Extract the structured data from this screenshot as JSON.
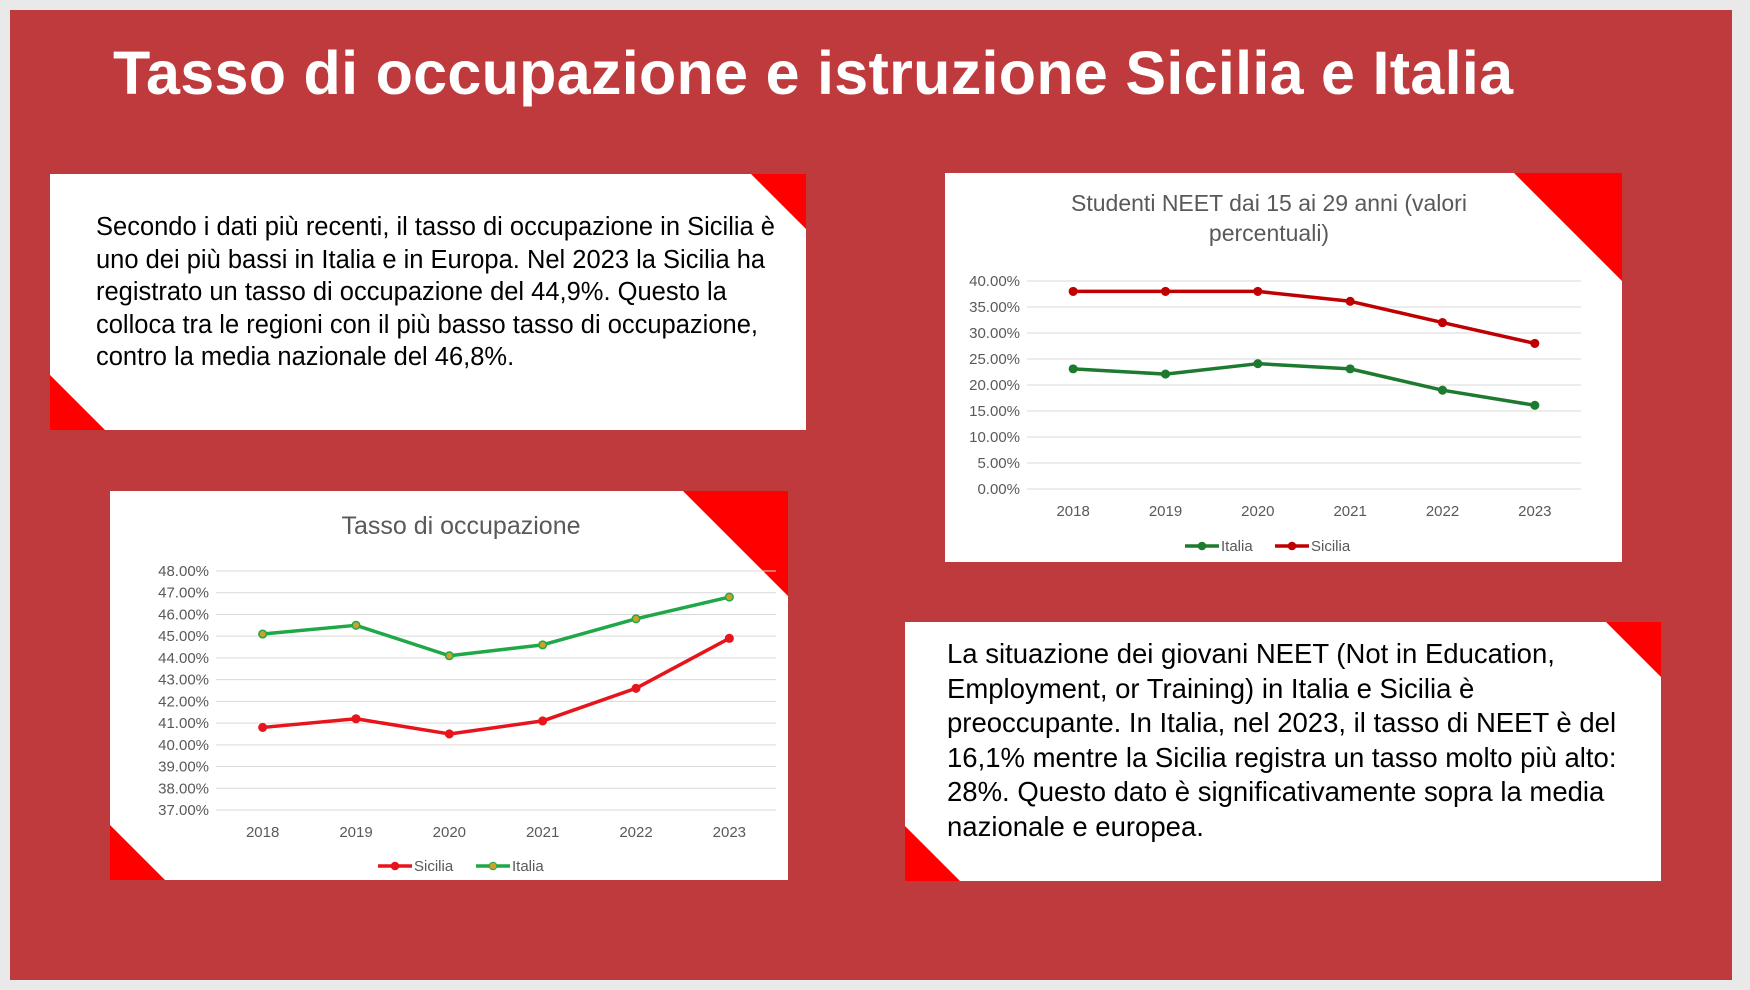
{
  "title": "Tasso di occupazione e istruzione Sicilia e Italia",
  "text_top_left": "Secondo i dati più recenti, il tasso di occupazione in Sicilia è uno dei più bassi in Italia e in Europa. Nel 2023 la Sicilia ha registrato un tasso di occupazione del 44,9%. Questo la colloca tra le regioni con il più basso tasso di occupazione, contro la media nazionale del 46,8%.",
  "text_bottom_right": "La situazione dei giovani NEET (Not in Education, Employment, or Training) in Italia e Sicilia è preoccupante. In Italia, nel 2023, il tasso di NEET è del 16,1% mentre la Sicilia registra un tasso molto più alto:  28%. Questo dato è significativamente sopra la media nazionale e europea.",
  "colors": {
    "background": "#be3a3c",
    "accent_triangle": "#ff0000",
    "card": "#ffffff"
  },
  "chart_data": [
    {
      "type": "line",
      "title": "Tasso di occupazione",
      "categories": [
        "2018",
        "2019",
        "2020",
        "2021",
        "2022",
        "2023"
      ],
      "series": [
        {
          "name": "Sicilia",
          "values": [
            40.8,
            41.2,
            40.5,
            41.1,
            42.6,
            44.9
          ],
          "color": "#e8141c"
        },
        {
          "name": "Italia",
          "values": [
            45.1,
            45.5,
            44.1,
            44.6,
            45.8,
            46.8
          ],
          "color": "#1fa847"
        }
      ],
      "ylim": [
        37,
        48
      ],
      "yticks": [
        "37.00%",
        "38.00%",
        "39.00%",
        "40.00%",
        "41.00%",
        "42.00%",
        "43.00%",
        "44.00%",
        "45.00%",
        "46.00%",
        "47.00%",
        "48.00%"
      ],
      "grid": true,
      "legend": "bottom"
    },
    {
      "type": "line",
      "title": "Studenti NEET dai 15 ai 29 anni (valori percentuali)",
      "title_lines": [
        "Studenti NEET dai 15 ai 29 anni (valori",
        "percentuali)"
      ],
      "categories": [
        "2018",
        "2019",
        "2020",
        "2021",
        "2022",
        "2023"
      ],
      "series": [
        {
          "name": "Italia",
          "values": [
            23.1,
            22.1,
            24.1,
            23.1,
            19.0,
            16.1
          ],
          "color": "#1e7a2e"
        },
        {
          "name": "Sicilia",
          "values": [
            38.0,
            38.0,
            38.0,
            36.1,
            32.0,
            28.0
          ],
          "color": "#c00000"
        }
      ],
      "ylim": [
        0,
        40
      ],
      "yticks": [
        "0.00%",
        "5.00%",
        "10.00%",
        "15.00%",
        "20.00%",
        "25.00%",
        "30.00%",
        "35.00%",
        "40.00%"
      ],
      "grid": true,
      "legend": "bottom"
    }
  ]
}
